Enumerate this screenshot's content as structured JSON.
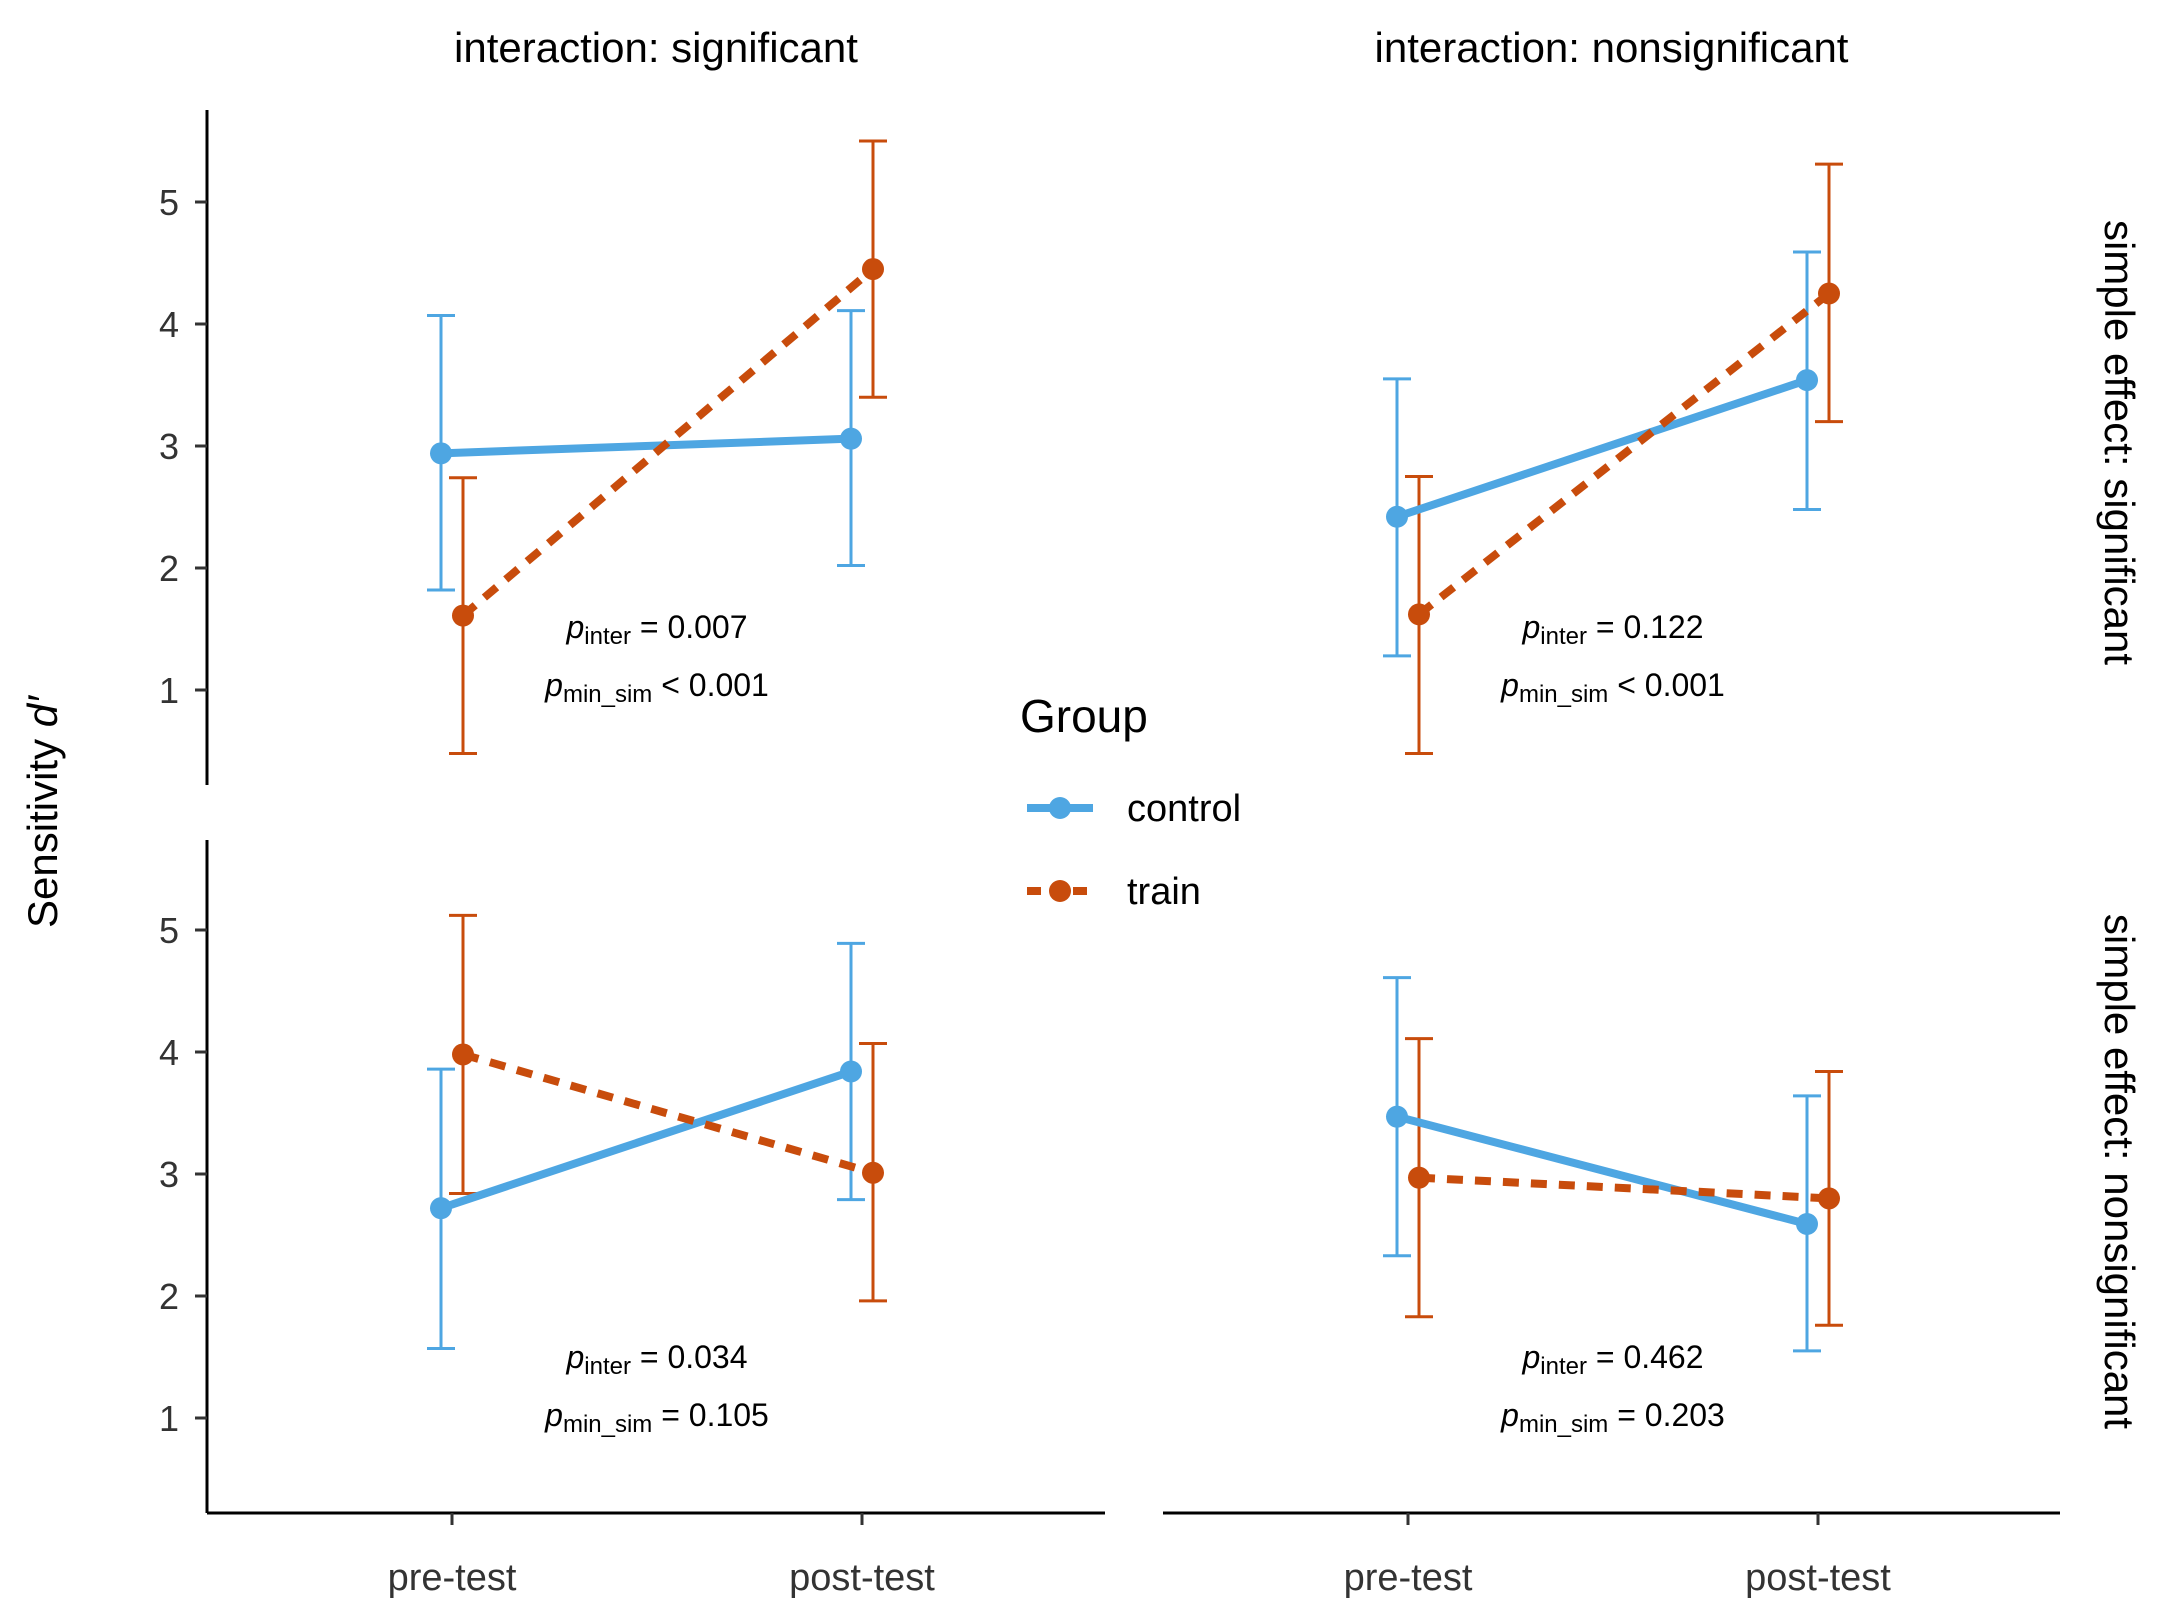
{
  "chart_data": {
    "type": "line",
    "ylabel": "Sensitivity",
    "ylabel_symbol": "d′",
    "categories": [
      "pre-test",
      "post-test"
    ],
    "y_ticks": [
      1,
      2,
      3,
      4,
      5
    ],
    "ylim": [
      0.25,
      5.75
    ],
    "column_facets": [
      "interaction: significant",
      "interaction: nonsignificant"
    ],
    "row_facets": [
      "simple effect: significant",
      "simple effect: nonsignificant"
    ],
    "legend": {
      "title": "Group",
      "placement": "center",
      "entries": [
        {
          "label": "control",
          "color": "#4EA6E2",
          "linestyle": "solid"
        },
        {
          "label": "train",
          "color": "#C84C0C",
          "linestyle": "dashed"
        }
      ]
    },
    "panels": [
      {
        "row": 0,
        "col": 0,
        "series": [
          {
            "name": "control",
            "values": [
              2.94,
              3.06
            ],
            "lower": [
              1.82,
              2.02
            ],
            "upper": [
              4.07,
              4.11
            ]
          },
          {
            "name": "train",
            "values": [
              1.61,
              4.45
            ],
            "lower": [
              0.48,
              3.4
            ],
            "upper": [
              2.74,
              5.5
            ]
          }
        ],
        "annotations": [
          {
            "symbol": "p",
            "subscript": "inter",
            "text": " = 0.007"
          },
          {
            "symbol": "p",
            "subscript": "min_sim",
            "text": " < 0.001"
          }
        ]
      },
      {
        "row": 0,
        "col": 1,
        "series": [
          {
            "name": "control",
            "values": [
              2.42,
              3.54
            ],
            "lower": [
              1.28,
              2.48
            ],
            "upper": [
              3.55,
              4.59
            ]
          },
          {
            "name": "train",
            "values": [
              1.62,
              4.25
            ],
            "lower": [
              0.48,
              3.2
            ],
            "upper": [
              2.75,
              5.31
            ]
          }
        ],
        "annotations": [
          {
            "symbol": "p",
            "subscript": "inter",
            "text": " = 0.122"
          },
          {
            "symbol": "p",
            "subscript": "min_sim",
            "text": " < 0.001"
          }
        ]
      },
      {
        "row": 1,
        "col": 0,
        "series": [
          {
            "name": "control",
            "values": [
              2.72,
              3.84
            ],
            "lower": [
              1.57,
              2.79
            ],
            "upper": [
              3.86,
              4.89
            ]
          },
          {
            "name": "train",
            "values": [
              3.98,
              3.01
            ],
            "lower": [
              2.84,
              1.96
            ],
            "upper": [
              5.12,
              4.07
            ]
          }
        ],
        "annotations": [
          {
            "symbol": "p",
            "subscript": "inter",
            "text": " = 0.034"
          },
          {
            "symbol": "p",
            "subscript": "min_sim",
            "text": " = 0.105"
          }
        ]
      },
      {
        "row": 1,
        "col": 1,
        "series": [
          {
            "name": "control",
            "values": [
              3.47,
              2.59
            ],
            "lower": [
              2.33,
              1.55
            ],
            "upper": [
              4.61,
              3.64
            ]
          },
          {
            "name": "train",
            "values": [
              2.97,
              2.8
            ],
            "lower": [
              1.83,
              1.76
            ],
            "upper": [
              4.11,
              3.84
            ]
          }
        ],
        "annotations": [
          {
            "symbol": "p",
            "subscript": "inter",
            "text": " = 0.462"
          },
          {
            "symbol": "p",
            "subscript": "min_sim",
            "text": " = 0.203"
          }
        ]
      }
    ]
  }
}
